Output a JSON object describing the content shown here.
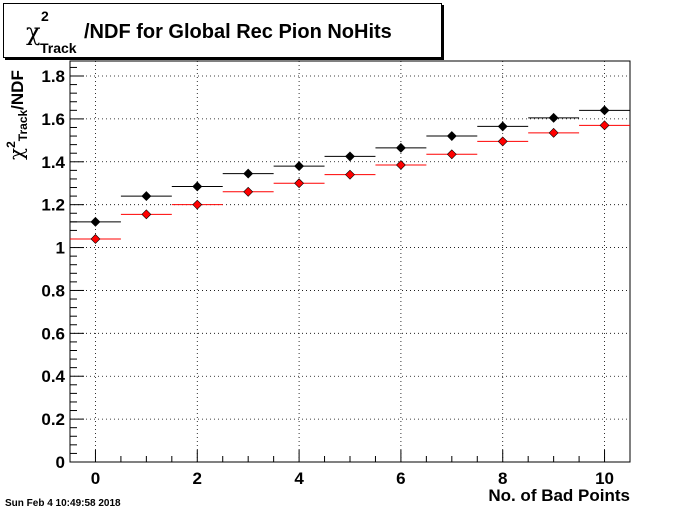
{
  "chart_data": {
    "type": "scatter",
    "title": "/NDF for Global Rec Pion NoHits",
    "title_prefix": {
      "symbol": "χ",
      "superscript": "2",
      "subscript": "Track"
    },
    "xlabel": "No. of Bad Points",
    "ylabel": "/NDF",
    "ylabel_prefix": {
      "symbol": "χ",
      "superscript": "2",
      "subscript": "Track"
    },
    "xlim": [
      -0.5,
      10.5
    ],
    "ylim": [
      0,
      1.87
    ],
    "xticks": [
      0,
      2,
      4,
      6,
      8,
      10
    ],
    "xtick_labels": [
      "0",
      "2",
      "4",
      "6",
      "8",
      "10"
    ],
    "yticks": [
      0,
      0.2,
      0.4,
      0.6,
      0.8,
      1,
      1.2,
      1.4,
      1.6,
      1.8
    ],
    "ytick_labels": [
      "0",
      "0.2",
      "0.4",
      "0.6",
      "0.8",
      "1",
      "1.2",
      "1.4",
      "1.6",
      "1.8"
    ],
    "grid": true,
    "bin_halfwidth": 0.5,
    "x": [
      0,
      1,
      2,
      3,
      4,
      5,
      6,
      7,
      8,
      9,
      10
    ],
    "series": [
      {
        "color": "#000000",
        "values": [
          1.12,
          1.24,
          1.285,
          1.345,
          1.38,
          1.425,
          1.465,
          1.52,
          1.565,
          1.605,
          1.64
        ]
      },
      {
        "color": "#ff0000",
        "values": [
          1.04,
          1.155,
          1.2,
          1.26,
          1.3,
          1.34,
          1.385,
          1.435,
          1.495,
          1.535,
          1.57
        ]
      }
    ]
  },
  "footer": {
    "timestamp": "Sun Feb  4 10:49:58 2018"
  }
}
